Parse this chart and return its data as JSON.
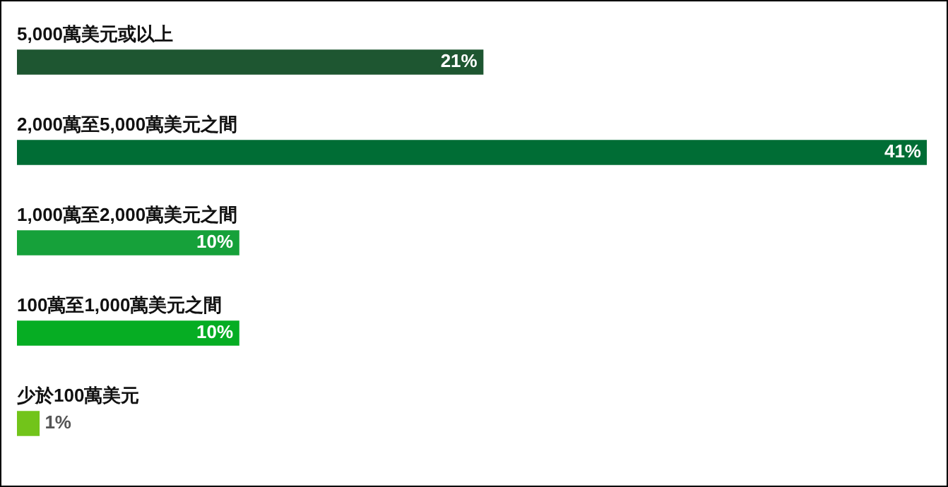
{
  "chart_data": {
    "type": "bar",
    "orientation": "horizontal",
    "categories": [
      "5,000萬美元或以上",
      "2,000萬至5,000萬美元之間",
      "1,000萬至2,000萬美元之間",
      "100萬至1,000萬美元之間",
      "少於100萬美元"
    ],
    "values": [
      21,
      41,
      10,
      10,
      1
    ],
    "colors": [
      "#1e5631",
      "#006d35",
      "#16a13a",
      "#06ad23",
      "#72c41a"
    ],
    "value_labels": [
      "21%",
      "41%",
      "10%",
      "10%",
      "1%"
    ],
    "xlim": [
      0,
      41
    ],
    "legend": false,
    "tick_labels": false
  }
}
